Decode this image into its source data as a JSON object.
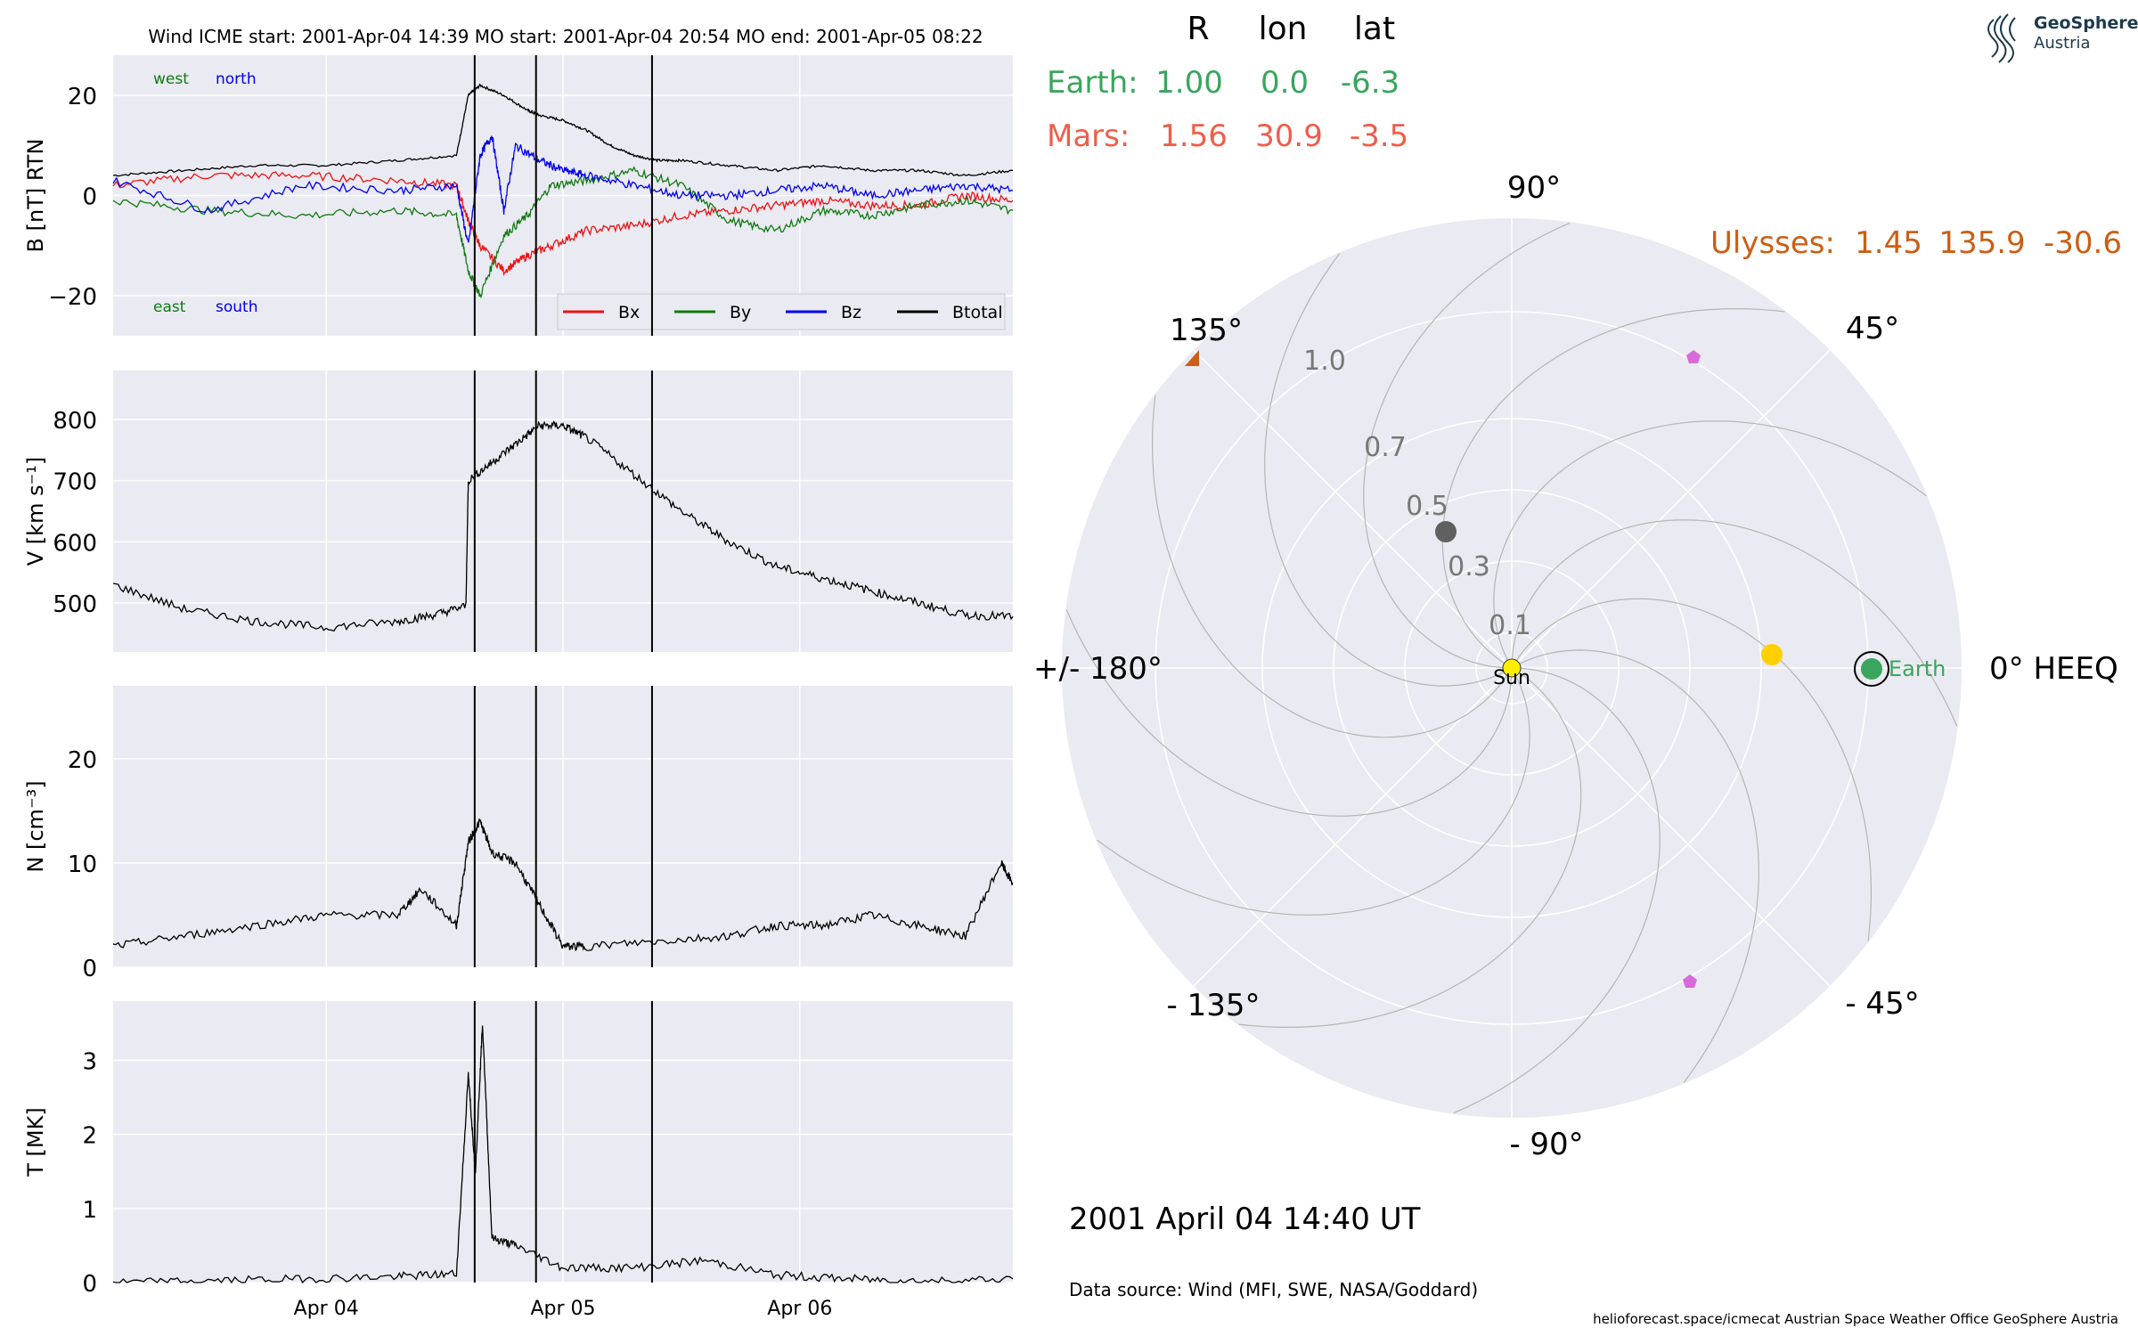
{
  "header": {
    "text": "Wind    ICME start: 2001-Apr-04 14:39    MO start: 2001-Apr-04 20:54    MO end: 2001-Apr-05 08:22"
  },
  "logo": {
    "line1": "GeoSphere",
    "line2": "Austria"
  },
  "table": {
    "head": [
      "R",
      "lon",
      "lat"
    ],
    "rows": [
      {
        "name": "Earth:",
        "R": "1.00",
        "lon": "0.0",
        "lat": "-6.3",
        "color": "#3aa55d"
      },
      {
        "name": "Mars:",
        "R": "1.56",
        "lon": "30.9",
        "lat": "-3.5",
        "color": "#f05d4a"
      }
    ]
  },
  "ulysses_label": {
    "name": "Ulysses:",
    "R": "1.45",
    "lon": "135.9",
    "lat": "-30.6",
    "color": "#cc5e15"
  },
  "polar": {
    "angle_labels": [
      "90°",
      "45°",
      "0° HEEQ",
      "- 45°",
      "- 90°",
      "- 135°",
      "+/- 180°",
      "135°"
    ],
    "radial_labels": [
      "0.1",
      "0.3",
      "0.5",
      "0.7",
      "1.0"
    ],
    "sun_label": "Sun",
    "earth_label": "Earth",
    "colors": {
      "earth": "#3aa55d",
      "sun": "#ffee00",
      "venus": "#ffd000",
      "mercury": "#606060",
      "ulysses": "#cc5e15",
      "pentagon": "#d96ad9"
    }
  },
  "footer": {
    "date": "2001 April 04  14:40 UT",
    "source": "Data source: Wind (MFI, SWE, NASA/Goddard)",
    "credits": "helioforecast.space/icmecat   Austrian Space Weather Office   GeoSphere Austria"
  },
  "chart_data": [
    {
      "type": "line",
      "ylabel": "B [nT] RTN",
      "ylim": [
        -28,
        28
      ],
      "yticks": [
        "20",
        "0",
        "−20"
      ],
      "corner_labels": {
        "west": "west",
        "north": "north",
        "east": "east",
        "south": "south"
      },
      "legend": [
        {
          "name": "Bx",
          "color": "#ee1111"
        },
        {
          "name": "By",
          "color": "#117a11"
        },
        {
          "name": "Bz",
          "color": "#0000ee"
        },
        {
          "name": "Btotal",
          "color": "#000000"
        }
      ],
      "series": [
        {
          "name": "Btotal",
          "x": [
            0,
            0.3,
            0.6,
            0.9,
            1.2,
            1.45,
            1.5,
            1.55,
            1.65,
            1.75,
            1.8,
            1.9,
            2.0,
            2.1,
            2.2,
            2.3,
            2.4,
            2.6,
            2.8,
            3.0,
            3.2,
            3.4,
            3.6,
            3.8
          ],
          "y": [
            4,
            5,
            6,
            6,
            7,
            8,
            20,
            22,
            20,
            17,
            16,
            15,
            13,
            10,
            8,
            7,
            7,
            6,
            5,
            6,
            5,
            5,
            4,
            5
          ]
        },
        {
          "name": "Bx",
          "x": [
            0,
            0.4,
            0.8,
            1.2,
            1.45,
            1.5,
            1.55,
            1.65,
            1.75,
            1.85,
            2.0,
            2.2,
            2.4,
            2.6,
            2.8,
            3.0,
            3.2,
            3.4,
            3.6,
            3.8
          ],
          "y": [
            2,
            4,
            4,
            3,
            2,
            -5,
            -10,
            -15,
            -12,
            -10,
            -7,
            -6,
            -4,
            -3,
            -2,
            -1,
            -2,
            -2,
            0,
            -1
          ]
        },
        {
          "name": "By",
          "x": [
            0,
            0.4,
            0.8,
            1.2,
            1.45,
            1.5,
            1.55,
            1.65,
            1.75,
            1.85,
            2.0,
            2.2,
            2.4,
            2.6,
            2.8,
            3.0,
            3.2,
            3.4,
            3.6,
            3.8
          ],
          "y": [
            -1,
            -3,
            -4,
            -3,
            -4,
            -15,
            -20,
            -8,
            -4,
            2,
            3,
            5,
            2,
            -5,
            -7,
            -3,
            -4,
            -2,
            -1,
            -3
          ]
        },
        {
          "name": "Bz",
          "x": [
            0,
            0.4,
            0.8,
            1.2,
            1.45,
            1.5,
            1.55,
            1.6,
            1.65,
            1.7,
            1.8,
            1.9,
            2.0,
            2.2,
            2.4,
            2.6,
            2.8,
            3.0,
            3.2,
            3.4,
            3.6,
            3.8
          ],
          "y": [
            3,
            -3,
            2,
            1,
            2,
            -10,
            8,
            12,
            -3,
            10,
            7,
            5,
            4,
            2,
            0,
            0,
            1,
            2,
            0,
            1,
            2,
            1
          ]
        }
      ]
    },
    {
      "type": "line",
      "ylabel": "V [km s⁻¹]",
      "ylim": [
        420,
        880
      ],
      "yticks": [
        "800",
        "700",
        "600",
        "500"
      ],
      "series": [
        {
          "name": "V",
          "x": [
            0,
            0.3,
            0.6,
            0.9,
            1.2,
            1.35,
            1.49,
            1.5,
            1.6,
            1.7,
            1.8,
            1.9,
            2.0,
            2.2,
            2.4,
            2.6,
            2.8,
            3.0,
            3.2,
            3.4,
            3.6,
            3.8
          ],
          "y": [
            530,
            490,
            470,
            460,
            470,
            480,
            495,
            700,
            730,
            760,
            790,
            790,
            770,
            710,
            650,
            600,
            560,
            540,
            520,
            500,
            480,
            478
          ]
        }
      ]
    },
    {
      "type": "line",
      "ylabel": "N [cm⁻³]",
      "ylim": [
        0,
        27
      ],
      "yticks": [
        "20",
        "10",
        "0"
      ],
      "series": [
        {
          "name": "N",
          "x": [
            0,
            0.3,
            0.6,
            0.9,
            1.2,
            1.3,
            1.45,
            1.5,
            1.55,
            1.6,
            1.7,
            1.8,
            1.9,
            2.0,
            2.3,
            2.6,
            2.8,
            3.0,
            3.2,
            3.4,
            3.6,
            3.75,
            3.8
          ],
          "y": [
            2,
            3,
            4,
            5,
            5,
            7.5,
            4,
            12,
            14,
            11,
            10,
            6,
            2,
            2,
            2.5,
            3,
            4,
            4,
            5,
            4,
            3,
            10,
            8
          ]
        }
      ]
    },
    {
      "type": "line",
      "ylabel": "T [MK]",
      "ylim": [
        0,
        3.8
      ],
      "yticks": [
        "3",
        "2",
        "1",
        "0"
      ],
      "xticks": [
        "Apr 04",
        "Apr 05",
        "Apr 06"
      ],
      "xtick_positions": [
        0.9,
        1.9,
        2.9
      ],
      "series": [
        {
          "name": "T",
          "x": [
            0,
            0.4,
            0.8,
            1.2,
            1.45,
            1.5,
            1.53,
            1.56,
            1.6,
            1.7,
            1.9,
            2.2,
            2.5,
            2.8,
            3.1,
            3.4,
            3.8
          ],
          "y": [
            0,
            0.02,
            0.05,
            0.08,
            0.12,
            2.8,
            1.5,
            3.5,
            0.6,
            0.5,
            0.2,
            0.2,
            0.3,
            0.1,
            0.05,
            0.02,
            0.05
          ]
        }
      ]
    }
  ]
}
